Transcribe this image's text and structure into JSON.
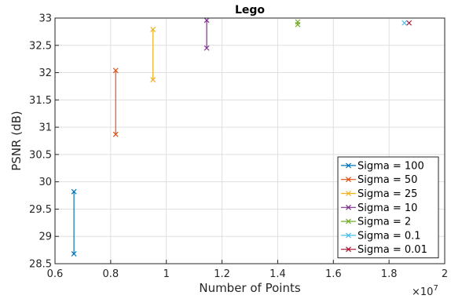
{
  "chart_data": {
    "type": "scatter",
    "title": "Lego",
    "xlabel": "Number of Points",
    "ylabel": "PSNR (dB)",
    "x_multiplier_base": "×10",
    "x_multiplier_exp": "7",
    "xlim": [
      0.6,
      2.0
    ],
    "ylim": [
      28.5,
      33.0
    ],
    "xticks": [
      0.6,
      0.8,
      1.0,
      1.2,
      1.4,
      1.6,
      1.8,
      2.0
    ],
    "xtick_labels": [
      "0.6",
      "0.8",
      "1",
      "1.2",
      "1.4",
      "1.6",
      "1.8",
      "2"
    ],
    "yticks": [
      28.5,
      29,
      29.5,
      30,
      30.5,
      31,
      31.5,
      32,
      32.5,
      33
    ],
    "ytick_labels": [
      "28.5",
      "29",
      "29.5",
      "30",
      "30.5",
      "31",
      "31.5",
      "32",
      "32.5",
      "33"
    ],
    "grid": true,
    "legend_position": "bottom-right",
    "marker": "x",
    "series": [
      {
        "name": "Sigma = 100",
        "color": "#0072BD",
        "points": [
          {
            "x": 0.668,
            "y": 29.82
          },
          {
            "x": 0.668,
            "y": 28.68
          }
        ]
      },
      {
        "name": "Sigma = 50",
        "color": "#D95319",
        "points": [
          {
            "x": 0.818,
            "y": 32.04
          },
          {
            "x": 0.818,
            "y": 30.87
          }
        ]
      },
      {
        "name": "Sigma = 25",
        "color": "#EDB120",
        "points": [
          {
            "x": 0.952,
            "y": 32.79
          },
          {
            "x": 0.952,
            "y": 31.87
          }
        ]
      },
      {
        "name": "Sigma = 10",
        "color": "#7E2F8E",
        "points": [
          {
            "x": 1.145,
            "y": 32.96
          },
          {
            "x": 1.145,
            "y": 32.45
          }
        ]
      },
      {
        "name": "Sigma = 2",
        "color": "#77AC30",
        "points": [
          {
            "x": 1.472,
            "y": 32.93
          },
          {
            "x": 1.472,
            "y": 32.88
          }
        ]
      },
      {
        "name": "Sigma = 0.1",
        "color": "#4DBEEE",
        "points": [
          {
            "x": 1.855,
            "y": 32.91
          }
        ]
      },
      {
        "name": "Sigma = 0.01",
        "color": "#A2142F",
        "points": [
          {
            "x": 1.872,
            "y": 32.91
          }
        ]
      }
    ]
  }
}
